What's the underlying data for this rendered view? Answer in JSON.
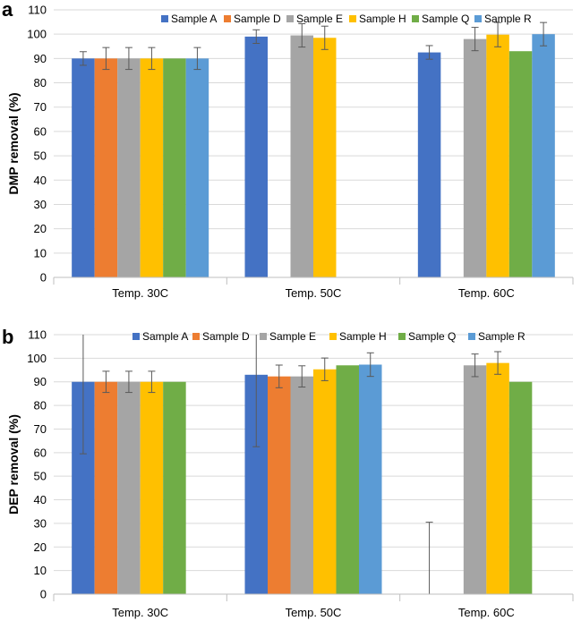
{
  "chart_data": [
    {
      "panel": "a",
      "type": "bar",
      "title": "",
      "xlabel": "",
      "ylabel": "DMP removal (%)",
      "ylim": [
        0,
        110
      ],
      "yticks": [
        0,
        10,
        20,
        30,
        40,
        50,
        60,
        70,
        80,
        90,
        100,
        110
      ],
      "grid": true,
      "legend": "top",
      "categories": [
        "Temp. 30C",
        "Temp. 50C",
        "Temp. 60C"
      ],
      "series": [
        {
          "name": "Sample A",
          "color": "#4472C4",
          "values": [
            90,
            99,
            92.5
          ],
          "errors": [
            2.8,
            2.8,
            2.8
          ]
        },
        {
          "name": "Sample D",
          "color": "#ED7D31",
          "values": [
            90,
            0,
            0
          ],
          "errors": [
            4.5,
            0,
            0
          ]
        },
        {
          "name": "Sample E",
          "color": "#A5A5A5",
          "values": [
            90,
            99.5,
            98
          ],
          "errors": [
            4.5,
            4.8,
            4.8
          ]
        },
        {
          "name": "Sample H",
          "color": "#FFC000",
          "values": [
            90,
            98.5,
            99.8
          ],
          "errors": [
            4.5,
            4.8,
            5
          ]
        },
        {
          "name": "Sample Q",
          "color": "#70AD47",
          "values": [
            90,
            0,
            93
          ],
          "errors": [
            0,
            0,
            0
          ]
        },
        {
          "name": "Sample R",
          "color": "#5B9BD5",
          "values": [
            90,
            0,
            100
          ],
          "errors": [
            4.5,
            0,
            4.8
          ]
        }
      ]
    },
    {
      "panel": "b",
      "type": "bar",
      "title": "",
      "xlabel": "",
      "ylabel": "DEP removal (%)",
      "ylim": [
        0,
        110
      ],
      "yticks": [
        0,
        10,
        20,
        30,
        40,
        50,
        60,
        70,
        80,
        90,
        100,
        110
      ],
      "grid": true,
      "legend": "top",
      "categories": [
        "Temp. 30C",
        "Temp. 50C",
        "Temp. 60C"
      ],
      "series": [
        {
          "name": "Sample A",
          "color": "#4472C4",
          "values": [
            90,
            93,
            0
          ],
          "errors": [
            30.5,
            30.5,
            30.5
          ]
        },
        {
          "name": "Sample D",
          "color": "#ED7D31",
          "values": [
            90,
            92.3,
            0
          ],
          "errors": [
            4.5,
            4.8,
            0
          ]
        },
        {
          "name": "Sample E",
          "color": "#A5A5A5",
          "values": [
            90,
            92.3,
            97
          ],
          "errors": [
            4.5,
            4.5,
            4.8
          ]
        },
        {
          "name": "Sample H",
          "color": "#FFC000",
          "values": [
            90,
            95.3,
            98
          ],
          "errors": [
            4.5,
            4.8,
            4.8
          ]
        },
        {
          "name": "Sample Q",
          "color": "#70AD47",
          "values": [
            90,
            97,
            90
          ],
          "errors": [
            0,
            0,
            0
          ]
        },
        {
          "name": "Sample R",
          "color": "#5B9BD5",
          "values": [
            0,
            97.3,
            0
          ],
          "errors": [
            0,
            5,
            0
          ]
        }
      ]
    }
  ]
}
